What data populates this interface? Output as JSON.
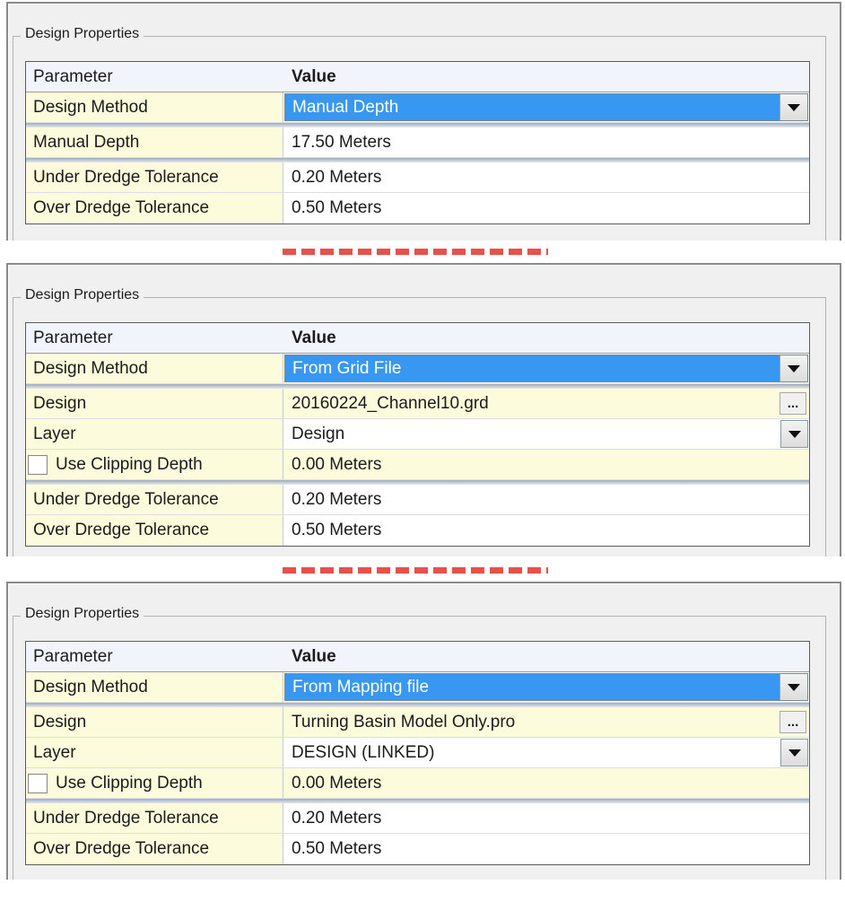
{
  "ui": {
    "browse_button_label": "...",
    "colors": {
      "selection_blue": "#3897f1",
      "parameter_yellow": "#fcfbdb",
      "header_bg": "#f1f5fb",
      "panel_bg": "#f0f0f0",
      "separator_red": "#e8514b"
    }
  },
  "panels": [
    {
      "group_title": "Design Properties",
      "columns": {
        "parameter": "Parameter",
        "value": "Value"
      },
      "rows": [
        {
          "param": "Design Method",
          "value": "Manual Depth"
        },
        {
          "param": "Manual Depth",
          "value": "17.50 Meters"
        },
        {
          "param": "Under Dredge Tolerance",
          "value": "0.20 Meters"
        },
        {
          "param": "Over Dredge Tolerance",
          "value": "0.50 Meters"
        }
      ]
    },
    {
      "group_title": "Design Properties",
      "columns": {
        "parameter": "Parameter",
        "value": "Value"
      },
      "rows": [
        {
          "param": "Design Method",
          "value": "From Grid File"
        },
        {
          "param": "Design",
          "value": "20160224_Channel10.grd"
        },
        {
          "param": "Layer",
          "value": "Design"
        },
        {
          "param": "Use Clipping Depth",
          "value": "0.00 Meters",
          "checkbox_checked": false
        },
        {
          "param": "Under Dredge Tolerance",
          "value": "0.20 Meters"
        },
        {
          "param": "Over Dredge Tolerance",
          "value": "0.50 Meters"
        }
      ]
    },
    {
      "group_title": "Design Properties",
      "columns": {
        "parameter": "Parameter",
        "value": "Value"
      },
      "rows": [
        {
          "param": "Design Method",
          "value": "From Mapping file"
        },
        {
          "param": "Design",
          "value": "Turning Basin Model Only.pro"
        },
        {
          "param": "Layer",
          "value": "DESIGN (LINKED)"
        },
        {
          "param": "Use Clipping Depth",
          "value": "0.00 Meters",
          "checkbox_checked": false
        },
        {
          "param": "Under Dredge Tolerance",
          "value": "0.20 Meters"
        },
        {
          "param": "Over Dredge Tolerance",
          "value": "0.50 Meters"
        }
      ]
    }
  ]
}
